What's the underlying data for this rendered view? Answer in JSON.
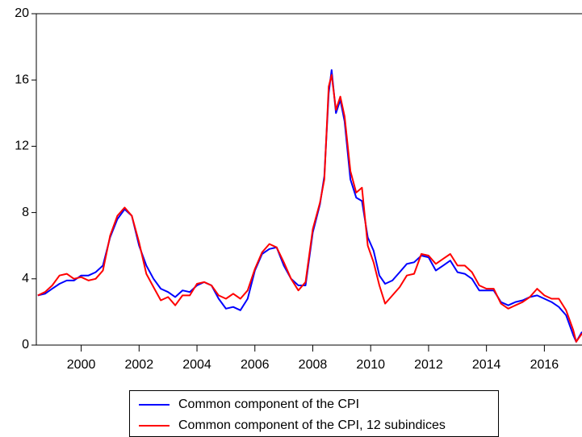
{
  "chart_data": {
    "type": "line",
    "x": [
      1998.5,
      1998.75,
      1999.0,
      1999.25,
      1999.5,
      1999.75,
      2000.0,
      2000.25,
      2000.5,
      2000.75,
      2001.0,
      2001.25,
      2001.5,
      2001.75,
      2002.0,
      2002.25,
      2002.5,
      2002.75,
      2003.0,
      2003.25,
      2003.5,
      2003.75,
      2004.0,
      2004.25,
      2004.5,
      2004.75,
      2005.0,
      2005.25,
      2005.5,
      2005.75,
      2006.0,
      2006.25,
      2006.5,
      2006.75,
      2007.0,
      2007.25,
      2007.5,
      2007.75,
      2008.0,
      2008.25,
      2008.4,
      2008.55,
      2008.65,
      2008.8,
      2008.95,
      2009.1,
      2009.3,
      2009.5,
      2009.7,
      2009.9,
      2010.1,
      2010.3,
      2010.5,
      2010.75,
      2011.0,
      2011.25,
      2011.5,
      2011.75,
      2012.0,
      2012.25,
      2012.5,
      2012.75,
      2013.0,
      2013.25,
      2013.5,
      2013.75,
      2014.0,
      2014.25,
      2014.5,
      2014.75,
      2015.0,
      2015.25,
      2015.5,
      2015.75,
      2016.0,
      2016.25,
      2016.5,
      2016.75,
      2017.0,
      2017.1,
      2017.3
    ],
    "series": [
      {
        "name": "Common component of the CPI",
        "color": "#0000ff",
        "values": [
          3.0,
          3.1,
          3.4,
          3.7,
          3.9,
          3.9,
          4.2,
          4.2,
          4.4,
          4.8,
          6.5,
          7.6,
          8.2,
          7.8,
          6.0,
          4.8,
          4.0,
          3.4,
          3.2,
          2.9,
          3.3,
          3.2,
          3.6,
          3.8,
          3.6,
          2.8,
          2.2,
          2.3,
          2.1,
          2.8,
          4.5,
          5.5,
          5.8,
          5.9,
          4.8,
          4.0,
          3.6,
          3.6,
          6.8,
          8.5,
          10.2,
          15.2,
          16.6,
          14.0,
          14.8,
          13.5,
          10.0,
          8.9,
          8.7,
          6.5,
          5.7,
          4.2,
          3.7,
          3.9,
          4.4,
          4.9,
          5.0,
          5.4,
          5.3,
          4.5,
          4.8,
          5.1,
          4.4,
          4.3,
          4.0,
          3.3,
          3.3,
          3.3,
          2.6,
          2.4,
          2.6,
          2.7,
          2.9,
          3.0,
          2.8,
          2.6,
          2.3,
          1.8,
          0.6,
          0.2,
          0.8
        ]
      },
      {
        "name": "Common component of the CPI, 12 subindices",
        "color": "#ff0000",
        "values": [
          3.0,
          3.2,
          3.6,
          4.2,
          4.3,
          4.0,
          4.1,
          3.9,
          4.0,
          4.5,
          6.6,
          7.8,
          8.3,
          7.8,
          6.2,
          4.3,
          3.5,
          2.7,
          2.9,
          2.4,
          3.0,
          3.0,
          3.7,
          3.8,
          3.6,
          3.0,
          2.8,
          3.1,
          2.8,
          3.3,
          4.6,
          5.6,
          6.1,
          5.9,
          5.0,
          4.0,
          3.3,
          3.8,
          7.0,
          8.6,
          10.0,
          15.6,
          16.3,
          14.2,
          15.0,
          13.8,
          10.5,
          9.2,
          9.5,
          6.0,
          5.0,
          3.6,
          2.5,
          3.0,
          3.5,
          4.2,
          4.3,
          5.5,
          5.4,
          4.9,
          5.2,
          5.5,
          4.8,
          4.8,
          4.4,
          3.6,
          3.4,
          3.4,
          2.5,
          2.2,
          2.4,
          2.6,
          2.9,
          3.4,
          3.0,
          2.8,
          2.8,
          2.1,
          0.9,
          0.2,
          0.7
        ]
      }
    ],
    "xlim": [
      1998.45,
      2017.3
    ],
    "xticks": [
      2000,
      2002,
      2004,
      2006,
      2008,
      2010,
      2012,
      2014,
      2016
    ],
    "ylim": [
      0,
      20
    ],
    "yticks": [
      0,
      4,
      8,
      12,
      16,
      20
    ]
  }
}
